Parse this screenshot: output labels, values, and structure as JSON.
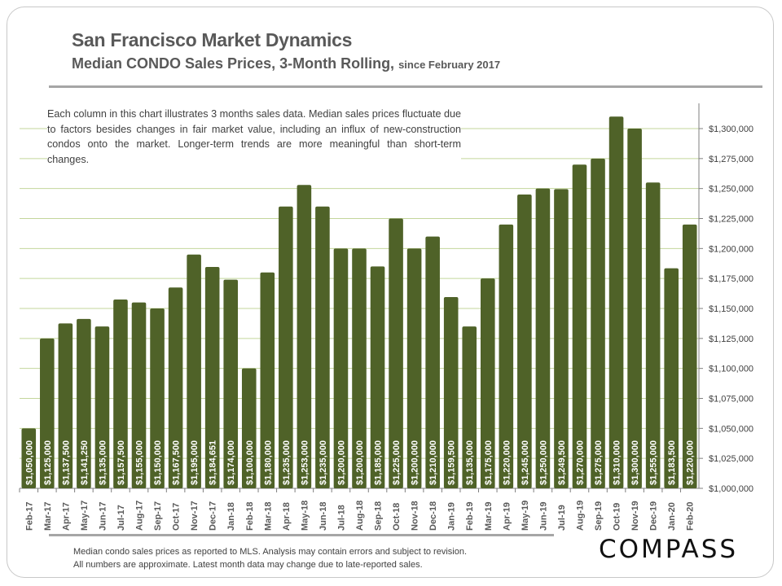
{
  "header": {
    "title": "San Francisco Market Dynamics",
    "subtitle": "Median CONDO Sales Prices, 3-Month Rolling,",
    "subtitle_small": "since February 2017"
  },
  "note": "Each column in this chart illustrates 3 months sales data. Median sales prices fluctuate due to factors besides changes in fair market value, including an influx of new-construction condos onto the market. Longer-term trends are more meaningful than short-term changes.",
  "footer": {
    "line1": "Median condo sales prices as reported to MLS.  Analysis may contain errors and subject to revision.",
    "line2": "All numbers are approximate.  Latest month data may change due to late-reported sales."
  },
  "logo": "COMPASS",
  "chart_data": {
    "type": "bar",
    "categories": [
      "Feb-17",
      "Mar-17",
      "Apr-17",
      "May-17",
      "Jun-17",
      "Jul-17",
      "Aug-17",
      "Sep-17",
      "Oct-17",
      "Nov-17",
      "Dec-17",
      "Jan-18",
      "Feb-18",
      "Mar-18",
      "Apr-18",
      "May-18",
      "Jun-18",
      "Jul-18",
      "Aug-18",
      "Sep-18",
      "Oct-18",
      "Nov-18",
      "Dec-18",
      "Jan-19",
      "Feb-19",
      "Mar-19",
      "Apr-19",
      "May-19",
      "Jun-19",
      "Jul-19",
      "Aug-19",
      "Sep-19",
      "Oct-19",
      "Nov-19",
      "Dec-19",
      "Jan-20",
      "Feb-20"
    ],
    "values": [
      1050000,
      1125000,
      1137500,
      1141250,
      1135000,
      1157500,
      1155000,
      1150000,
      1167500,
      1195000,
      1184651,
      1174000,
      1100000,
      1180000,
      1235000,
      1253000,
      1235000,
      1200000,
      1200000,
      1185000,
      1225000,
      1200000,
      1210000,
      1159500,
      1135000,
      1175000,
      1220000,
      1245000,
      1250000,
      1249500,
      1270000,
      1275000,
      1310000,
      1300000,
      1255000,
      1183500,
      1220000
    ],
    "data_labels": [
      "$1,050,000",
      "$1,125,000",
      "$1,137,500",
      "$1,141,250",
      "$1,135,000",
      "$1,157,500",
      "$1,155,000",
      "$1,150,000",
      "$1,167,500",
      "$1,195,000",
      "$1,184,651",
      "$1,174,000",
      "$1,100,000",
      "$1,180,000",
      "$1,235,000",
      "$1,253,000",
      "$1,235,000",
      "$1,200,000",
      "$1,200,000",
      "$1,185,000",
      "$1,225,000",
      "$1,200,000",
      "$1,210,000",
      "$1,159,500",
      "$1,135,000",
      "$1,175,000",
      "$1,220,000",
      "$1,245,000",
      "$1,250,000",
      "$1,249,500",
      "$1,270,000",
      "$1,275,000",
      "$1,310,000",
      "$1,300,000",
      "$1,255,000",
      "$1,183,500",
      "$1,220,000"
    ],
    "ylim": [
      1000000,
      1325000
    ],
    "yticks": [
      1000000,
      1025000,
      1050000,
      1075000,
      1100000,
      1125000,
      1150000,
      1175000,
      1200000,
      1225000,
      1250000,
      1275000,
      1300000
    ],
    "ytick_labels": [
      "$1,000,000",
      "$1,025,000",
      "$1,050,000",
      "$1,075,000",
      "$1,100,000",
      "$1,125,000",
      "$1,150,000",
      "$1,175,000",
      "$1,200,000",
      "$1,225,000",
      "$1,250,000",
      "$1,275,000",
      "$1,300,000"
    ],
    "y_axis_side": "right",
    "grid": true,
    "colors": {
      "bar": "#4f6228",
      "grid": "#c3d69b",
      "axis": "#7f7f7f",
      "label": "#ffffff"
    }
  }
}
